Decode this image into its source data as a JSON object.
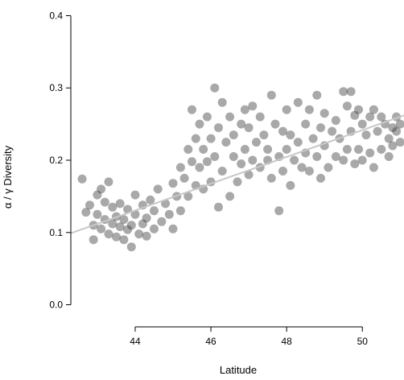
{
  "chart_data": {
    "type": "scatter",
    "title": "",
    "xlabel": "Latitude",
    "ylabel": "α / γ Diversity",
    "xlim": [
      42.3,
      51.1
    ],
    "ylim": [
      -0.015,
      0.415
    ],
    "x_ticks": [
      44,
      46,
      48,
      50
    ],
    "x_tick_labels": [
      "44",
      "46",
      "48",
      "50"
    ],
    "y_ticks": [
      0.0,
      0.1,
      0.2,
      0.3,
      0.4
    ],
    "y_tick_labels": [
      "0.0",
      "0.1",
      "0.2",
      "0.3",
      "0.4"
    ],
    "grid": false,
    "legend": "none",
    "point_color": "#333333",
    "point_opacity": 0.42,
    "trend_line": {
      "x": [
        42.3,
        51.1
      ],
      "y": [
        0.099,
        0.262
      ],
      "color": "#c8c8c8"
    },
    "series": [
      {
        "points": [
          [
            42.6,
            0.174
          ],
          [
            42.7,
            0.128
          ],
          [
            42.8,
            0.138
          ],
          [
            42.9,
            0.11
          ],
          [
            42.9,
            0.09
          ],
          [
            43.0,
            0.152
          ],
          [
            43.0,
            0.125
          ],
          [
            43.1,
            0.16
          ],
          [
            43.1,
            0.105
          ],
          [
            43.2,
            0.142
          ],
          [
            43.2,
            0.118
          ],
          [
            43.3,
            0.17
          ],
          [
            43.3,
            0.098
          ],
          [
            43.4,
            0.135
          ],
          [
            43.4,
            0.112
          ],
          [
            43.5,
            0.122
          ],
          [
            43.5,
            0.094
          ],
          [
            43.6,
            0.14
          ],
          [
            43.6,
            0.108
          ],
          [
            43.7,
            0.118
          ],
          [
            43.7,
            0.09
          ],
          [
            43.8,
            0.132
          ],
          [
            43.8,
            0.104
          ],
          [
            43.9,
            0.11
          ],
          [
            43.9,
            0.08
          ],
          [
            44.0,
            0.125
          ],
          [
            44.0,
            0.152
          ],
          [
            44.1,
            0.098
          ],
          [
            44.2,
            0.138
          ],
          [
            44.2,
            0.112
          ],
          [
            44.3,
            0.12
          ],
          [
            44.3,
            0.095
          ],
          [
            44.4,
            0.145
          ],
          [
            44.5,
            0.105
          ],
          [
            44.5,
            0.13
          ],
          [
            44.6,
            0.16
          ],
          [
            44.7,
            0.115
          ],
          [
            44.8,
            0.14
          ],
          [
            44.9,
            0.125
          ],
          [
            45.0,
            0.168
          ],
          [
            45.0,
            0.105
          ],
          [
            45.1,
            0.15
          ],
          [
            45.2,
            0.19
          ],
          [
            45.2,
            0.13
          ],
          [
            45.3,
            0.175
          ],
          [
            45.4,
            0.215
          ],
          [
            45.4,
            0.15
          ],
          [
            45.5,
            0.198
          ],
          [
            45.5,
            0.27
          ],
          [
            45.6,
            0.165
          ],
          [
            45.6,
            0.23
          ],
          [
            45.7,
            0.25
          ],
          [
            45.7,
            0.19
          ],
          [
            45.8,
            0.215
          ],
          [
            45.8,
            0.16
          ],
          [
            45.9,
            0.26
          ],
          [
            45.9,
            0.198
          ],
          [
            46.0,
            0.23
          ],
          [
            46.0,
            0.17
          ],
          [
            46.1,
            0.3
          ],
          [
            46.1,
            0.205
          ],
          [
            46.2,
            0.135
          ],
          [
            46.2,
            0.245
          ],
          [
            46.3,
            0.28
          ],
          [
            46.3,
            0.185
          ],
          [
            46.4,
            0.225
          ],
          [
            46.5,
            0.15
          ],
          [
            46.5,
            0.26
          ],
          [
            46.6,
            0.205
          ],
          [
            46.6,
            0.235
          ],
          [
            46.7,
            0.17
          ],
          [
            46.8,
            0.25
          ],
          [
            46.8,
            0.195
          ],
          [
            46.9,
            0.27
          ],
          [
            46.9,
            0.215
          ],
          [
            47.0,
            0.18
          ],
          [
            47.0,
            0.245
          ],
          [
            47.1,
            0.275
          ],
          [
            47.1,
            0.2
          ],
          [
            47.2,
            0.225
          ],
          [
            47.3,
            0.19
          ],
          [
            47.3,
            0.26
          ],
          [
            47.4,
            0.235
          ],
          [
            47.5,
            0.2
          ],
          [
            47.5,
            0.215
          ],
          [
            47.6,
            0.29
          ],
          [
            47.6,
            0.175
          ],
          [
            47.7,
            0.25
          ],
          [
            47.8,
            0.13
          ],
          [
            47.8,
            0.205
          ],
          [
            47.9,
            0.24
          ],
          [
            47.9,
            0.185
          ],
          [
            48.0,
            0.27
          ],
          [
            48.0,
            0.215
          ],
          [
            48.1,
            0.165
          ],
          [
            48.1,
            0.235
          ],
          [
            48.2,
            0.2
          ],
          [
            48.3,
            0.28
          ],
          [
            48.3,
            0.225
          ],
          [
            48.4,
            0.19
          ],
          [
            48.5,
            0.25
          ],
          [
            48.5,
            0.21
          ],
          [
            48.6,
            0.27
          ],
          [
            48.6,
            0.185
          ],
          [
            48.7,
            0.23
          ],
          [
            48.8,
            0.29
          ],
          [
            48.8,
            0.205
          ],
          [
            48.9,
            0.245
          ],
          [
            48.9,
            0.175
          ],
          [
            49.0,
            0.22
          ],
          [
            49.0,
            0.265
          ],
          [
            49.1,
            0.19
          ],
          [
            49.2,
            0.24
          ],
          [
            49.3,
            0.205
          ],
          [
            49.3,
            0.255
          ],
          [
            49.4,
            0.23
          ],
          [
            49.5,
            0.295
          ],
          [
            49.5,
            0.2
          ],
          [
            49.6,
            0.275
          ],
          [
            49.6,
            0.215
          ],
          [
            49.7,
            0.295
          ],
          [
            49.7,
            0.24
          ],
          [
            49.8,
            0.195
          ],
          [
            49.8,
            0.262
          ],
          [
            49.9,
            0.27
          ],
          [
            49.9,
            0.215
          ],
          [
            50.0,
            0.25
          ],
          [
            50.0,
            0.2
          ],
          [
            50.1,
            0.235
          ],
          [
            50.2,
            0.26
          ],
          [
            50.2,
            0.21
          ],
          [
            50.3,
            0.27
          ],
          [
            50.3,
            0.19
          ],
          [
            50.4,
            0.24
          ],
          [
            50.5,
            0.215
          ],
          [
            50.5,
            0.26
          ],
          [
            50.6,
            0.25
          ],
          [
            50.7,
            0.23
          ],
          [
            50.7,
            0.205
          ],
          [
            50.8,
            0.245
          ],
          [
            50.8,
            0.22
          ],
          [
            50.9,
            0.24
          ],
          [
            50.9,
            0.26
          ],
          [
            51.0,
            0.225
          ],
          [
            51.0,
            0.25
          ]
        ]
      }
    ]
  }
}
